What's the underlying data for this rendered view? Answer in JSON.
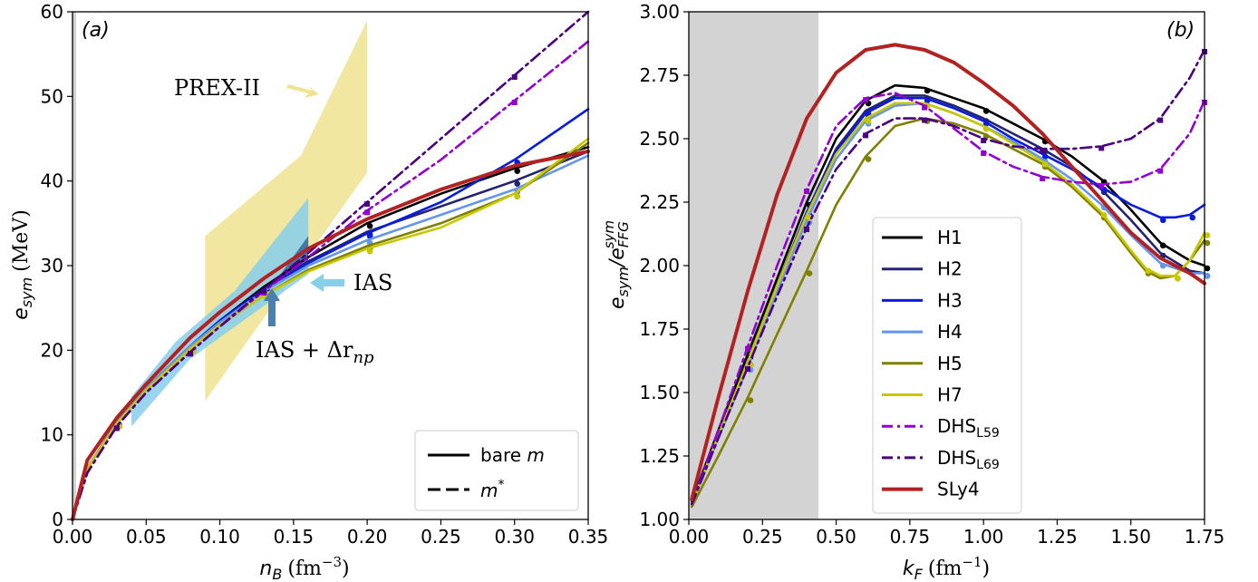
{
  "chart_data": [
    {
      "panel_label": "(a)",
      "type": "line",
      "xlabel": {
        "main": "n",
        "sub": "B",
        "unit": "(fm",
        "exp": "−3",
        "close": ")"
      },
      "ylabel": {
        "main": "e",
        "sub": "sym",
        "unit": "(MeV)"
      },
      "xlim": [
        0.0,
        0.35
      ],
      "ylim": [
        0,
        60
      ],
      "x_ticks": [
        "0.00",
        "0.05",
        "0.10",
        "0.15",
        "0.20",
        "0.25",
        "0.30",
        "0.35"
      ],
      "y_ticks": [
        "0",
        "10",
        "20",
        "30",
        "40",
        "50",
        "60"
      ],
      "x_tick_values": [
        0,
        0.05,
        0.1,
        0.15,
        0.2,
        0.25,
        0.3,
        0.35
      ],
      "y_tick_values": [
        0,
        10,
        20,
        30,
        40,
        50,
        60
      ],
      "bands": [
        {
          "name": "PREX-II",
          "color": "#efe38f",
          "polygon": [
            [
              0.09,
              14
            ],
            [
              0.09,
              33.5
            ],
            [
              0.155,
              43
            ],
            [
              0.2,
              59
            ],
            [
              0.2,
              41
            ],
            [
              0.155,
              30
            ],
            [
              0.09,
              14
            ]
          ]
        },
        {
          "name": "IAS",
          "color": "#87ceeb",
          "polygon": [
            [
              0.04,
              11
            ],
            [
              0.04,
              14.5
            ],
            [
              0.07,
              21
            ],
            [
              0.11,
              27
            ],
            [
              0.16,
              38
            ],
            [
              0.16,
              29
            ],
            [
              0.12,
              24
            ],
            [
              0.08,
              19
            ],
            [
              0.04,
              11
            ]
          ]
        },
        {
          "name": "IAS + Δr_np",
          "color": "#3a6e9f",
          "polygon": [
            [
              0.135,
              27.5
            ],
            [
              0.16,
              33.5
            ],
            [
              0.16,
              30.5
            ],
            [
              0.135,
              27.5
            ]
          ]
        }
      ],
      "annotations": [
        {
          "text": "PREX-II",
          "arrow_color": "#efe38f"
        },
        {
          "text": "IAS",
          "arrow_color": "#87ceeb"
        },
        {
          "text": "IAS + Δr",
          "sub": "np",
          "arrow_color": "#4a7fb0"
        }
      ],
      "series": [
        {
          "name": "H1",
          "color": "#000000",
          "style": "solid",
          "x": [
            0,
            0.01,
            0.03,
            0.05,
            0.08,
            0.1,
            0.13,
            0.16,
            0.2,
            0.25,
            0.3,
            0.35
          ],
          "values": [
            0,
            6,
            11.5,
            15.5,
            20.5,
            23.5,
            27.5,
            31,
            35,
            38.5,
            41.5,
            44
          ]
        },
        {
          "name": "H2",
          "color": "#232370",
          "style": "solid",
          "x": [
            0,
            0.01,
            0.03,
            0.05,
            0.08,
            0.1,
            0.13,
            0.16,
            0.2,
            0.25,
            0.3,
            0.35
          ],
          "values": [
            0,
            6,
            11.5,
            15.5,
            20.5,
            23.5,
            27.2,
            30.5,
            34,
            37,
            40,
            43.5
          ]
        },
        {
          "name": "H3",
          "color": "#0a1cdc",
          "style": "solid",
          "x": [
            0,
            0.01,
            0.03,
            0.05,
            0.08,
            0.1,
            0.13,
            0.16,
            0.2,
            0.25,
            0.3,
            0.35
          ],
          "values": [
            0,
            6,
            11.5,
            15.5,
            20.5,
            23.5,
            27.2,
            30.3,
            33.8,
            37.5,
            42.5,
            48.5
          ]
        },
        {
          "name": "H4",
          "color": "#6495ed",
          "style": "solid",
          "x": [
            0,
            0.01,
            0.03,
            0.05,
            0.08,
            0.1,
            0.13,
            0.16,
            0.2,
            0.25,
            0.3,
            0.35
          ],
          "values": [
            0,
            6,
            11.5,
            15.5,
            20.5,
            23.3,
            27,
            30,
            33,
            36,
            39,
            43
          ]
        },
        {
          "name": "H5",
          "color": "#808000",
          "style": "solid",
          "x": [
            0,
            0.01,
            0.03,
            0.05,
            0.08,
            0.1,
            0.13,
            0.16,
            0.2,
            0.25,
            0.3,
            0.35
          ],
          "values": [
            0,
            6,
            11.3,
            15.3,
            20.2,
            23,
            26.5,
            29.5,
            32.3,
            35,
            38.5,
            44.5
          ]
        },
        {
          "name": "H7",
          "color": "#c8c800",
          "style": "solid",
          "x": [
            0,
            0.01,
            0.03,
            0.05,
            0.08,
            0.1,
            0.13,
            0.16,
            0.2,
            0.25,
            0.3,
            0.35
          ],
          "values": [
            0,
            6,
            11.3,
            15.3,
            20.2,
            23,
            26.5,
            29.3,
            32,
            34.5,
            38.5,
            45
          ]
        },
        {
          "name": "DHS_L59",
          "color": "#9400d3",
          "style": "dashdot",
          "x": [
            0,
            0.01,
            0.03,
            0.05,
            0.08,
            0.1,
            0.13,
            0.16,
            0.2,
            0.25,
            0.3,
            0.35
          ],
          "values": [
            0,
            5.5,
            11,
            15,
            19.8,
            22.8,
            27,
            31,
            36.5,
            42.5,
            49.5,
            56.5
          ]
        },
        {
          "name": "DHS_L69",
          "color": "#4b0082",
          "style": "dashdot",
          "x": [
            0,
            0.01,
            0.03,
            0.05,
            0.08,
            0.1,
            0.13,
            0.16,
            0.2,
            0.25,
            0.3,
            0.35
          ],
          "values": [
            0,
            5.5,
            11,
            15,
            19.8,
            22.8,
            27.2,
            31.5,
            37.5,
            45,
            52.5,
            60
          ]
        },
        {
          "name": "SLy4",
          "color": "#b22222",
          "style": "solid",
          "thick": true,
          "x": [
            0,
            0.01,
            0.03,
            0.05,
            0.08,
            0.1,
            0.13,
            0.16,
            0.2,
            0.25,
            0.3,
            0.35
          ],
          "values": [
            0,
            7,
            12,
            16,
            21.5,
            24.5,
            28.5,
            32,
            35.5,
            39,
            41.8,
            43.5
          ]
        }
      ],
      "legend": {
        "placement": "bottom-right",
        "entries": [
          {
            "label": "bare ",
            "label_italic": "m",
            "style": "solid"
          },
          {
            "label": "m",
            "label_sup": "*",
            "italic": true,
            "style": "dashed"
          }
        ]
      },
      "shaded_region": {
        "x": [
          0.0,
          0.002
        ],
        "color": "#d3d3d3"
      }
    },
    {
      "panel_label": "(b)",
      "type": "line",
      "xlabel": {
        "main": "k",
        "sub": "F",
        "unit": "(fm",
        "exp": "−1",
        "close": ")"
      },
      "ylabel": {
        "main": "e",
        "sub": "sym",
        "slash": "/e",
        "sub2": "FFG",
        "sup2": "sym"
      },
      "xlim": [
        0.0,
        1.75
      ],
      "ylim": [
        1.0,
        3.0
      ],
      "x_ticks": [
        "0.00",
        "0.25",
        "0.50",
        "0.75",
        "1.00",
        "1.25",
        "1.50",
        "1.75"
      ],
      "y_ticks": [
        "1.00",
        "1.25",
        "1.50",
        "1.75",
        "2.00",
        "2.25",
        "2.50",
        "2.75",
        "3.00"
      ],
      "x_tick_values": [
        0,
        0.25,
        0.5,
        0.75,
        1.0,
        1.25,
        1.5,
        1.75
      ],
      "y_tick_values": [
        1.0,
        1.25,
        1.5,
        1.75,
        2.0,
        2.25,
        2.5,
        2.75,
        3.0
      ],
      "shaded_region": {
        "x": [
          0.0,
          0.44
        ],
        "color": "#d3d3d3"
      },
      "series": [
        {
          "name": "H1",
          "color": "#000000",
          "style": "solid",
          "x": [
            0.01,
            0.1,
            0.2,
            0.3,
            0.4,
            0.5,
            0.6,
            0.7,
            0.8,
            0.9,
            1.0,
            1.1,
            1.2,
            1.3,
            1.4,
            1.5,
            1.6,
            1.7,
            1.75
          ],
          "values": [
            1.07,
            1.35,
            1.65,
            1.95,
            2.25,
            2.5,
            2.65,
            2.71,
            2.7,
            2.66,
            2.62,
            2.56,
            2.5,
            2.43,
            2.34,
            2.22,
            2.09,
            2.02,
            2.0
          ]
        },
        {
          "name": "H2",
          "color": "#232370",
          "style": "solid",
          "x": [
            0.01,
            0.1,
            0.2,
            0.3,
            0.4,
            0.5,
            0.6,
            0.7,
            0.8,
            0.9,
            1.0,
            1.1,
            1.2,
            1.3,
            1.4,
            1.5,
            1.6,
            1.7,
            1.75
          ],
          "values": [
            1.06,
            1.33,
            1.62,
            1.92,
            2.21,
            2.46,
            2.61,
            2.67,
            2.67,
            2.63,
            2.58,
            2.52,
            2.46,
            2.39,
            2.3,
            2.18,
            2.05,
            1.98,
            1.97
          ]
        },
        {
          "name": "H3",
          "color": "#0a1cdc",
          "style": "solid",
          "x": [
            0.01,
            0.1,
            0.2,
            0.3,
            0.4,
            0.5,
            0.6,
            0.7,
            0.8,
            0.9,
            1.0,
            1.1,
            1.2,
            1.3,
            1.4,
            1.5,
            1.6,
            1.65,
            1.7,
            1.75
          ],
          "values": [
            1.06,
            1.33,
            1.62,
            1.92,
            2.21,
            2.45,
            2.6,
            2.66,
            2.66,
            2.62,
            2.57,
            2.5,
            2.44,
            2.38,
            2.31,
            2.24,
            2.19,
            2.19,
            2.2,
            2.24
          ]
        },
        {
          "name": "H4",
          "color": "#6495ed",
          "style": "solid",
          "x": [
            0.01,
            0.1,
            0.2,
            0.3,
            0.4,
            0.5,
            0.6,
            0.7,
            0.8,
            0.9,
            1.0,
            1.1,
            1.2,
            1.3,
            1.4,
            1.5,
            1.6,
            1.7,
            1.75
          ],
          "values": [
            1.06,
            1.32,
            1.6,
            1.9,
            2.18,
            2.42,
            2.57,
            2.63,
            2.64,
            2.6,
            2.55,
            2.49,
            2.42,
            2.34,
            2.24,
            2.12,
            2.01,
            1.97,
            1.97
          ]
        },
        {
          "name": "H5",
          "color": "#808000",
          "style": "solid",
          "x": [
            0.01,
            0.1,
            0.2,
            0.3,
            0.4,
            0.5,
            0.6,
            0.7,
            0.8,
            0.9,
            1.0,
            1.1,
            1.2,
            1.3,
            1.4,
            1.5,
            1.55,
            1.6,
            1.65,
            1.7,
            1.75
          ],
          "values": [
            1.05,
            1.25,
            1.48,
            1.73,
            1.98,
            2.24,
            2.43,
            2.55,
            2.58,
            2.56,
            2.52,
            2.46,
            2.4,
            2.31,
            2.2,
            2.05,
            1.98,
            1.95,
            1.96,
            2.02,
            2.1
          ]
        },
        {
          "name": "H7",
          "color": "#c8c800",
          "style": "solid",
          "x": [
            0.01,
            0.1,
            0.2,
            0.3,
            0.4,
            0.5,
            0.6,
            0.7,
            0.8,
            0.9,
            1.0,
            1.1,
            1.2,
            1.3,
            1.4,
            1.5,
            1.55,
            1.6,
            1.65,
            1.7,
            1.75
          ],
          "values": [
            1.06,
            1.33,
            1.62,
            1.92,
            2.2,
            2.44,
            2.58,
            2.64,
            2.64,
            2.6,
            2.55,
            2.48,
            2.41,
            2.32,
            2.21,
            2.06,
            1.99,
            1.96,
            1.96,
            2.02,
            2.13
          ]
        },
        {
          "name": "DHS_L59",
          "color": "#9400d3",
          "style": "dashdot",
          "x": [
            0.01,
            0.1,
            0.2,
            0.3,
            0.4,
            0.5,
            0.6,
            0.7,
            0.8,
            0.9,
            1.0,
            1.1,
            1.2,
            1.3,
            1.4,
            1.5,
            1.6,
            1.7,
            1.75
          ],
          "values": [
            1.06,
            1.35,
            1.68,
            2.0,
            2.3,
            2.55,
            2.66,
            2.68,
            2.63,
            2.54,
            2.45,
            2.39,
            2.35,
            2.33,
            2.32,
            2.33,
            2.38,
            2.52,
            2.65
          ]
        },
        {
          "name": "DHS_L69",
          "color": "#4b0082",
          "style": "dashdot",
          "x": [
            0.01,
            0.1,
            0.2,
            0.3,
            0.4,
            0.5,
            0.6,
            0.7,
            0.8,
            0.9,
            1.0,
            1.1,
            1.2,
            1.3,
            1.4,
            1.5,
            1.6,
            1.7,
            1.75
          ],
          "values": [
            1.06,
            1.32,
            1.6,
            1.88,
            2.15,
            2.38,
            2.52,
            2.58,
            2.58,
            2.55,
            2.5,
            2.47,
            2.46,
            2.46,
            2.47,
            2.5,
            2.58,
            2.74,
            2.85
          ]
        },
        {
          "name": "SLy4",
          "color": "#b22222",
          "style": "solid",
          "thick": true,
          "x": [
            0.01,
            0.1,
            0.2,
            0.3,
            0.4,
            0.5,
            0.6,
            0.7,
            0.8,
            0.9,
            1.0,
            1.1,
            1.2,
            1.3,
            1.4,
            1.5,
            1.6,
            1.7,
            1.75
          ],
          "values": [
            1.08,
            1.48,
            1.9,
            2.28,
            2.58,
            2.76,
            2.85,
            2.87,
            2.85,
            2.8,
            2.72,
            2.63,
            2.52,
            2.39,
            2.26,
            2.13,
            2.03,
            1.97,
            1.93
          ]
        }
      ],
      "legend": {
        "placement": "center",
        "entries": [
          {
            "label": "H1",
            "series": "H1"
          },
          {
            "label": "H2",
            "series": "H2"
          },
          {
            "label": "H3",
            "series": "H3"
          },
          {
            "label": "H4",
            "series": "H4"
          },
          {
            "label": "H5",
            "series": "H5"
          },
          {
            "label": "H7",
            "series": "H7"
          },
          {
            "label": "DHS",
            "label_sub": "L59",
            "series": "DHS_L59"
          },
          {
            "label": "DHS",
            "label_sub": "L69",
            "series": "DHS_L69"
          },
          {
            "label": "SLy4",
            "series": "SLy4"
          }
        ]
      }
    }
  ]
}
